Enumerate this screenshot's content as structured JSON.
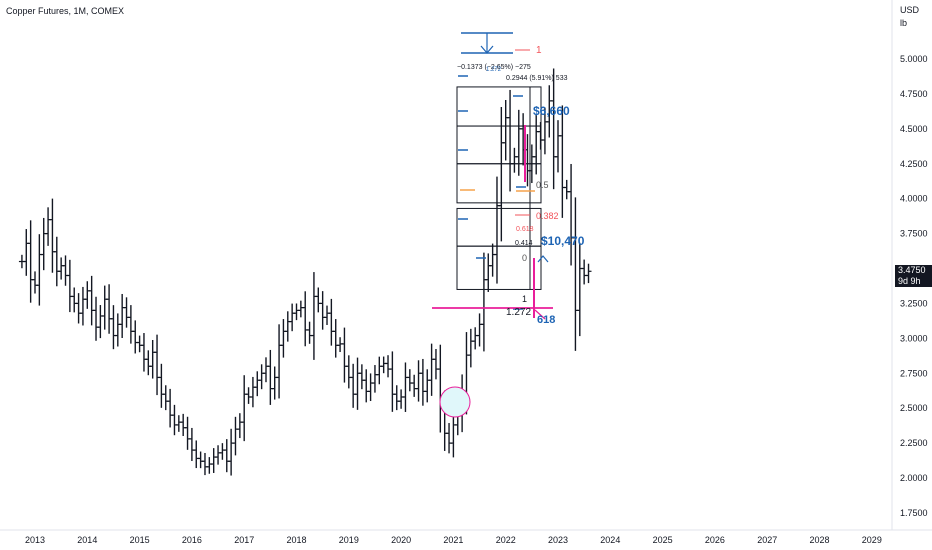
{
  "title": "Copper Futures, 1M, COMEX",
  "price_badge": {
    "price": "3.4750",
    "countdown": "9d 9h"
  },
  "axis_unit": {
    "currency": "USD",
    "per": "lb"
  },
  "colors": {
    "bars": "#131722",
    "magenta": "#e91e9a",
    "blue": "#1e64b4",
    "orange": "#f5a24b",
    "red": "#f2545b",
    "circle_fill": "#e0f7fa"
  },
  "annotations": {
    "big_label_1": "$6,660",
    "big_label_2": "$10,470",
    "big_label_3": "618",
    "fib_top": "1",
    "fib_mid": "0.5",
    "fib_382": "0.382",
    "fib_618": "0.618",
    "fib_zero": "0",
    "fib_one_low": "1",
    "fib_1272": "1.272",
    "measure_text": "−0.1373 (−2.65%) −275",
    "measure_text_2": "0.2944 (5.91%) 533",
    "small_1272": "1.272",
    "small_0414": "0.414",
    "small_0618_b": "0.618"
  },
  "chart_data": {
    "type": "ohlc",
    "title": "Copper Futures, 1M, COMEX",
    "x_ticks": [
      "2013",
      "2014",
      "2015",
      "2016",
      "2017",
      "2018",
      "2019",
      "2020",
      "2021",
      "2022",
      "2023",
      "2024",
      "2025",
      "2026",
      "2027",
      "2028",
      "2029"
    ],
    "y_ticks": [
      "5.0000",
      "4.7500",
      "4.5000",
      "4.2500",
      "4.0000",
      "3.7500",
      "3.5000",
      "3.2500",
      "3.0000",
      "2.7500",
      "2.5000",
      "2.2500",
      "2.0000",
      "1.7500"
    ],
    "ylim": [
      1.68,
      5.32
    ],
    "last_price": 3.475,
    "fib_levels": [
      1,
      0.618,
      0.5,
      0.382,
      0,
      1.272
    ],
    "series": [
      {
        "year_start": 2012.75,
        "closes": [
          3.55,
          3.68,
          3.42,
          3.38,
          3.6,
          3.75,
          3.85,
          3.62,
          3.48,
          3.52,
          3.45,
          3.3,
          3.25,
          3.18,
          3.28,
          3.34,
          3.2,
          3.08,
          3.16,
          3.28,
          3.14,
          3.02,
          3.1,
          3.22,
          3.15,
          3.05,
          2.97,
          2.95,
          2.85,
          2.8,
          2.9,
          2.72,
          2.6,
          2.55,
          2.45,
          2.38,
          2.4,
          2.36,
          2.28,
          2.2,
          2.14,
          2.12,
          2.08,
          2.1,
          2.15,
          2.18,
          2.2,
          2.12,
          2.25,
          2.35,
          2.4,
          2.6,
          2.58,
          2.65,
          2.7,
          2.75,
          2.8,
          2.64,
          2.72,
          2.95,
          3.05,
          3.12,
          3.18,
          3.2,
          3.22,
          3.06,
          3.02,
          3.3,
          3.25,
          3.15,
          3.18,
          3.05,
          2.95,
          2.96,
          2.8,
          2.72,
          2.6,
          2.75,
          2.7,
          2.62,
          2.68,
          2.74,
          2.8,
          2.82,
          2.78,
          2.6,
          2.55,
          2.58,
          2.72,
          2.68,
          2.64,
          2.75,
          2.62,
          2.7,
          2.85,
          2.78,
          2.5,
          2.32,
          2.25,
          2.38,
          2.45,
          2.62,
          2.88,
          2.98,
          3.02,
          3.1,
          3.42,
          3.52,
          3.6,
          3.95,
          4.4,
          4.58,
          4.25,
          4.3,
          4.5,
          4.35,
          4.2,
          4.3,
          4.48,
          4.42,
          4.55,
          4.7,
          4.3,
          4.45,
          4.08,
          4.05,
          3.72,
          3.2,
          3.5,
          3.45,
          3.48
        ]
      }
    ]
  }
}
